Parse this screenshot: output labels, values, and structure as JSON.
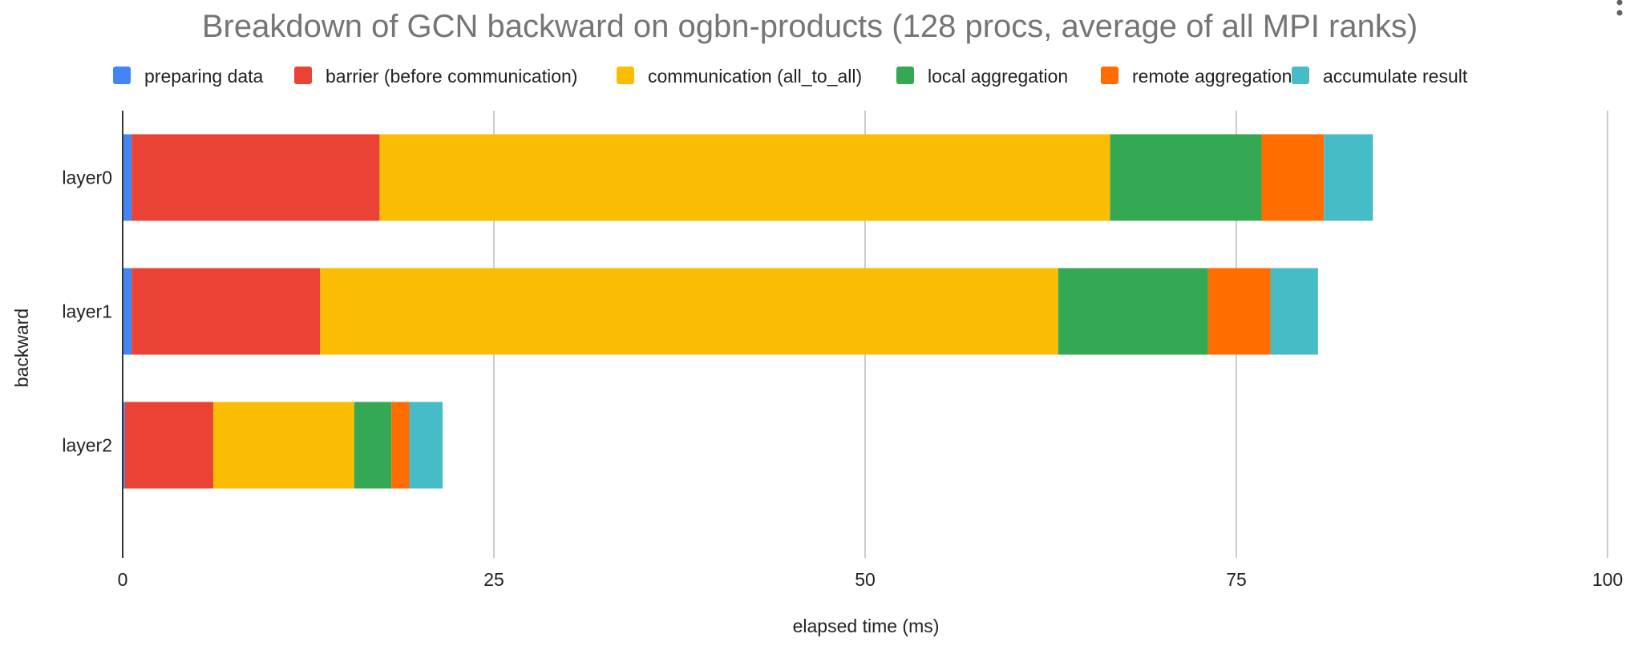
{
  "chart_data": {
    "type": "bar",
    "orientation": "horizontal",
    "stacked": true,
    "title": "Breakdown of GCN backward on ogbn-products (128 procs, average of all MPI ranks)",
    "xlabel": "elapsed time (ms)",
    "ylabel": "backward",
    "xlim": [
      0,
      100
    ],
    "xticks": [
      "0",
      "25",
      "50",
      "75",
      "100"
    ],
    "grid": true,
    "legend_position": "top",
    "categories": [
      "layer0",
      "layer1",
      "layer2"
    ],
    "series": [
      {
        "name": "preparing data",
        "color": "#4285F4",
        "values": [
          0.6,
          0.6,
          0.15
        ]
      },
      {
        "name": "barrier (before communication)",
        "color": "#EA4335",
        "values": [
          16.7,
          12.7,
          5.95
        ]
      },
      {
        "name": "communication (all_to_all)",
        "color": "#FBBC04",
        "values": [
          49.2,
          49.7,
          9.5
        ]
      },
      {
        "name": "local aggregation",
        "color": "#34A853",
        "values": [
          10.2,
          10.1,
          2.5
        ]
      },
      {
        "name": "remote aggregation",
        "color": "#FF6D01",
        "values": [
          4.2,
          4.2,
          1.2
        ]
      },
      {
        "name": "accumulate result",
        "color": "#46BDC6",
        "values": [
          3.3,
          3.2,
          2.25
        ]
      }
    ]
  }
}
